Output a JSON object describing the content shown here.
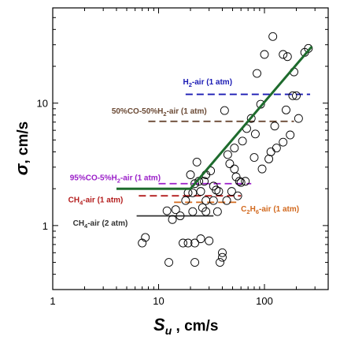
{
  "chart_data": {
    "type": "scatter",
    "xscale": "log",
    "yscale": "log",
    "xlim": [
      1,
      400
    ],
    "ylim": [
      0.3,
      60
    ],
    "x_ticks": [
      1,
      10,
      100
    ],
    "y_ticks": [
      1,
      10
    ],
    "xlabel": {
      "main": "S",
      "sub": "u",
      "unit": " , cm/s"
    },
    "ylabel": {
      "main": "σ",
      "unit": ", cm/s"
    },
    "points": [
      [
        7,
        0.72
      ],
      [
        7.5,
        0.8
      ],
      [
        12,
        1.32
      ],
      [
        12.5,
        0.5
      ],
      [
        13.5,
        1.12
      ],
      [
        14.5,
        1.35
      ],
      [
        16,
        1.2
      ],
      [
        17,
        0.72
      ],
      [
        18,
        1.6
      ],
      [
        19,
        1.85
      ],
      [
        19,
        0.72
      ],
      [
        20,
        2.6
      ],
      [
        21,
        1.3
      ],
      [
        21,
        1.85
      ],
      [
        22,
        0.72
      ],
      [
        22,
        0.5
      ],
      [
        22,
        2.2
      ],
      [
        23,
        3.3
      ],
      [
        24,
        2.3
      ],
      [
        25,
        1.9
      ],
      [
        25,
        0.78
      ],
      [
        26,
        1.4
      ],
      [
        27,
        2.3
      ],
      [
        28,
        2.6
      ],
      [
        28,
        1.6
      ],
      [
        28,
        1.3
      ],
      [
        30,
        0.75
      ],
      [
        31,
        2.8
      ],
      [
        33,
        2.1
      ],
      [
        33,
        1.6
      ],
      [
        35,
        1.95
      ],
      [
        36,
        1.3
      ],
      [
        37,
        1.9
      ],
      [
        38,
        0.5
      ],
      [
        40,
        0.55
      ],
      [
        40,
        0.6
      ],
      [
        42,
        8.7
      ],
      [
        44,
        1.6
      ],
      [
        45,
        3.8
      ],
      [
        47,
        3.2
      ],
      [
        49,
        1.9
      ],
      [
        52,
        4.3
      ],
      [
        52,
        2.9
      ],
      [
        54,
        2.5
      ],
      [
        56,
        1.75
      ],
      [
        58,
        2.3
      ],
      [
        60,
        2.25
      ],
      [
        62,
        4.9
      ],
      [
        66,
        2.3
      ],
      [
        68,
        6.2
      ],
      [
        75,
        7.5
      ],
      [
        80,
        3.6
      ],
      [
        82,
        5.6
      ],
      [
        85,
        17.5
      ],
      [
        92,
        9.8
      ],
      [
        95,
        2.9
      ],
      [
        100,
        25
      ],
      [
        110,
        3.5
      ],
      [
        115,
        4.0
      ],
      [
        120,
        35
      ],
      [
        125,
        6.5
      ],
      [
        130,
        4.3
      ],
      [
        150,
        4.8
      ],
      [
        150,
        25
      ],
      [
        160,
        8.8
      ],
      [
        165,
        24
      ],
      [
        175,
        5.5
      ],
      [
        185,
        11.5
      ],
      [
        190,
        18
      ],
      [
        200,
        11.5
      ],
      [
        210,
        7.5
      ],
      [
        240,
        26
      ],
      [
        260,
        28
      ]
    ],
    "fit_line": {
      "color": "#1e6b2d",
      "points": [
        [
          4,
          2.0
        ],
        [
          20,
          2.0
        ],
        [
          280,
          29
        ]
      ]
    },
    "references": [
      {
        "label_parts": [
          [
            "H",
            "n"
          ],
          [
            "2",
            "sub"
          ],
          [
            "-air (1 atm)",
            "n"
          ]
        ],
        "color": "#1b1bb4",
        "x_range": [
          18,
          270
        ],
        "y": 11.8,
        "label_x": 17,
        "label_y": 14.2
      },
      {
        "label_parts": [
          [
            "50%CO-50%H",
            "n"
          ],
          [
            "2",
            "sub"
          ],
          [
            "-air (1 atm)",
            "n"
          ]
        ],
        "color": "#6b4a35",
        "x_range": [
          8,
          190
        ],
        "y": 7.1,
        "label_x": 3.6,
        "label_y": 8.2
      },
      {
        "label_parts": [
          [
            "95%CO-5%H",
            "n"
          ],
          [
            "2",
            "sub"
          ],
          [
            "-air (1 atm)",
            "n"
          ]
        ],
        "color": "#9a1ec8",
        "x_range": [
          10,
          75
        ],
        "y": 2.2,
        "label_x": 1.45,
        "label_y": 2.35
      },
      {
        "label_parts": [
          [
            "CH",
            "n"
          ],
          [
            "4",
            "sub"
          ],
          [
            "-air (1 atm)",
            "n"
          ]
        ],
        "color": "#b41e1e",
        "x_range": [
          6.5,
          60
        ],
        "y": 1.75,
        "label_x": 1.4,
        "label_y": 1.55
      },
      {
        "label_parts": [
          [
            "C",
            "n"
          ],
          [
            "2",
            "sub"
          ],
          [
            "H",
            "n"
          ],
          [
            "6",
            "sub"
          ],
          [
            "-air (1 atm)",
            "n"
          ]
        ],
        "color": "#d2691e",
        "x_range": [
          14,
          58
        ],
        "y": 1.55,
        "label_x": 60,
        "label_y": 1.3
      },
      {
        "label_parts": [
          [
            "CH",
            "n"
          ],
          [
            "4",
            "sub"
          ],
          [
            "-air (2 atm)",
            "n"
          ]
        ],
        "color": "#333333",
        "solid": true,
        "x_range": [
          6.2,
          33
        ],
        "y": 1.2,
        "label_x": 1.55,
        "label_y": 1.0
      }
    ]
  }
}
